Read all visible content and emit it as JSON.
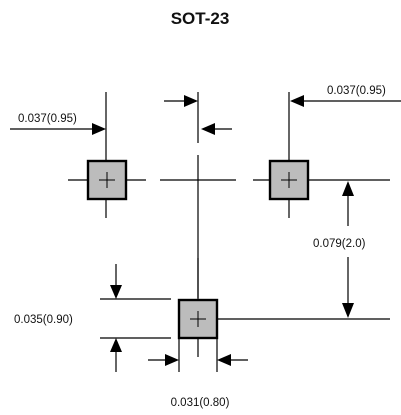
{
  "title": "SOT-23",
  "dimensions": {
    "pad_pitch_left": "0.037(0.95)",
    "pad_pitch_right": "0.037(0.95)",
    "row_spacing": "0.079(2.0)",
    "pad_length": "0.035(0.90)",
    "pad_width": "0.031(0.80)"
  },
  "colors": {
    "pad_fill": "#bcbcbc",
    "line": "#000000",
    "background": "#ffffff"
  }
}
